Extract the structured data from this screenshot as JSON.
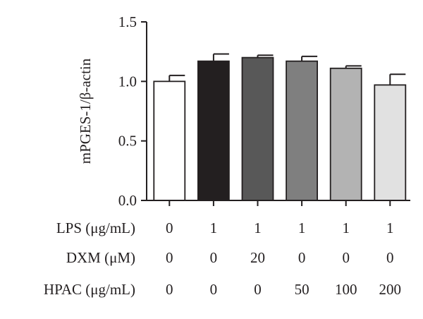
{
  "chart_data": {
    "type": "bar",
    "ylabel": "mPGES-1/β-actin",
    "ylim": [
      0,
      1.5
    ],
    "yticks": [
      "0.0",
      "0.5",
      "1.0",
      "1.5"
    ],
    "grid": false,
    "series": [
      {
        "values": [
          1.0,
          1.17,
          1.2,
          1.17,
          1.11,
          0.97
        ],
        "errors": [
          0.05,
          0.06,
          0.02,
          0.04,
          0.02,
          0.09
        ],
        "colors": [
          "#ffffff",
          "#231f20",
          "#585858",
          "#7f7f7f",
          "#b3b3b3",
          "#e1e1e1"
        ]
      }
    ],
    "condition_rows": [
      {
        "label": "LPS (μg/mL)",
        "values": [
          "0",
          "1",
          "1",
          "1",
          "1",
          "1"
        ]
      },
      {
        "label": "DXM (μM)",
        "values": [
          "0",
          "0",
          "20",
          "0",
          "0",
          "0"
        ]
      },
      {
        "label": "HPAC (μg/mL)",
        "values": [
          "0",
          "0",
          "0",
          "50",
          "100",
          "200"
        ]
      }
    ]
  }
}
